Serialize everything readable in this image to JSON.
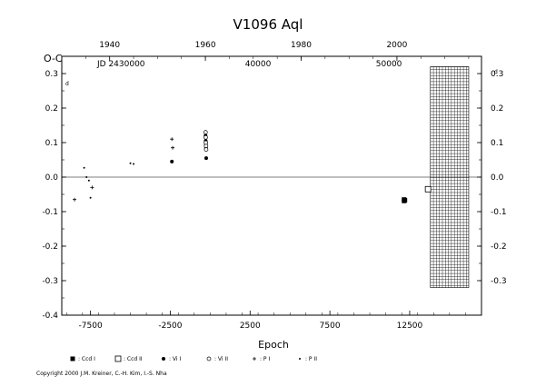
{
  "chart_data": {
    "type": "scatter",
    "title": "V1096  Aql",
    "xlabel": "Epoch",
    "ylabel": "O-C",
    "y_unit_left": "d",
    "y_unit_right": "d",
    "xlim": [
      -9300,
      17000
    ],
    "ylim": [
      -0.4,
      0.35
    ],
    "x_ticks": [
      -7500,
      -2500,
      2500,
      7500,
      12500
    ],
    "x_tick_labels": [
      "-7500",
      "-2500",
      "2500",
      "7500",
      "12500"
    ],
    "y_ticks": [
      -0.4,
      -0.3,
      -0.2,
      -0.1,
      0.0,
      0.1,
      0.2,
      0.3
    ],
    "y_tick_labels": [
      "-0.4",
      "-0.3",
      "-0.2",
      "-0.1",
      "0.0",
      "0.1",
      "0.2",
      "0.3"
    ],
    "right_y_ticks": [
      -0.3,
      -0.2,
      -0.1,
      0.0,
      0.1,
      0.2,
      0.3
    ],
    "right_y_tick_labels": [
      "-0.3",
      "-0.2",
      "-0.1",
      "0.0",
      "0.1",
      "0.2",
      "0.3"
    ],
    "top_year_ticks": [
      1940,
      1960,
      1980,
      2000
    ],
    "top_year_labels": [
      "1940",
      "1960",
      "1980",
      "2000"
    ],
    "top_year_epochs": [
      -6300,
      -300,
      5700,
      11700
    ],
    "jd_label": "JD  2430000",
    "jd_ticks": [
      40000,
      50000
    ],
    "jd_tick_labels": [
      "40000",
      "50000"
    ],
    "jd_tick_epochs": [
      3000,
      11200
    ],
    "zero_line": true,
    "hatched_region_x": [
      13800,
      16200
    ],
    "hatched_region_y": [
      -0.32,
      0.32
    ],
    "series": [
      {
        "name": ": Ccd  I",
        "marker": "filled-square",
        "points": [
          [
            12150,
            -0.065
          ],
          [
            12150,
            -0.069
          ],
          [
            12200,
            -0.067
          ]
        ]
      },
      {
        "name": ": Ccd  II",
        "marker": "open-square",
        "points": [
          [
            13650,
            -0.035
          ]
        ]
      },
      {
        "name": ": Vi  I",
        "marker": "filled-circle",
        "points": [
          [
            -2400,
            0.045
          ],
          [
            -290,
            0.12
          ],
          [
            -280,
            0.105
          ],
          [
            -270,
            0.095
          ],
          [
            -265,
            0.085
          ],
          [
            -250,
            0.055
          ]
        ]
      },
      {
        "name": ": Vi  II",
        "marker": "open-circle",
        "points": [
          [
            -290,
            0.13
          ],
          [
            -280,
            0.115
          ],
          [
            -270,
            0.1
          ],
          [
            -260,
            0.09
          ],
          [
            -255,
            0.08
          ]
        ]
      },
      {
        "name": ": P  I",
        "marker": "plus",
        "points": [
          [
            -8500,
            -0.065
          ],
          [
            -7400,
            -0.03
          ],
          [
            -2400,
            0.11
          ],
          [
            -2350,
            0.085
          ]
        ]
      },
      {
        "name": ": P  II",
        "marker": "dot",
        "points": [
          [
            -7900,
            0.027
          ],
          [
            -7750,
            0.0
          ],
          [
            -7600,
            -0.01
          ],
          [
            -7500,
            -0.06
          ],
          [
            -5000,
            0.04
          ],
          [
            -4800,
            0.038
          ]
        ]
      }
    ]
  },
  "copyright": "Copyright 2000 J.M. Kreiner, C.-H. Kim, I.-S. Nha"
}
